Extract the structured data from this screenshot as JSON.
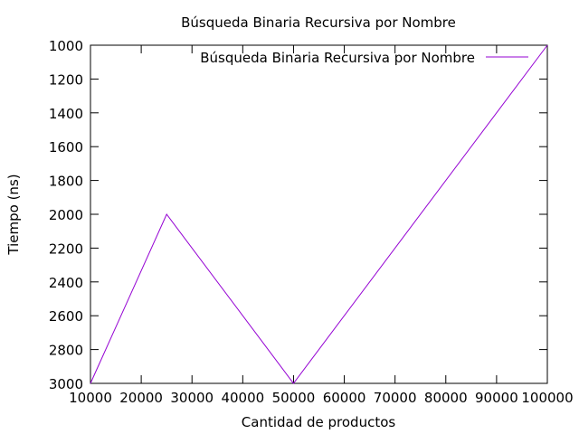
{
  "chart_data": {
    "type": "line",
    "title": "Búsqueda Binaria Recursiva por Nombre",
    "xlabel": "Cantidad de productos",
    "ylabel": "Tiempo (ns)",
    "xlim": [
      10000,
      100000
    ],
    "ylim": [
      1000,
      3000
    ],
    "y_inverted": true,
    "grid": false,
    "legend_position": "top-right",
    "x_ticks": [
      10000,
      20000,
      30000,
      40000,
      50000,
      60000,
      70000,
      80000,
      90000,
      100000
    ],
    "x_tick_labels": [
      "10000",
      "20000",
      "30000",
      "40000",
      "50000",
      "60000",
      "70000",
      "80000",
      "90000",
      "100000"
    ],
    "y_ticks": [
      1000,
      1200,
      1400,
      1600,
      1800,
      2000,
      2200,
      2400,
      2600,
      2800,
      3000
    ],
    "y_tick_labels": [
      "1000",
      "1200",
      "1400",
      "1600",
      "1800",
      "2000",
      "2200",
      "2400",
      "2600",
      "2800",
      "3000"
    ],
    "series": [
      {
        "name": "Búsqueda Binaria Recursiva por Nombre",
        "color": "#9400d3",
        "x": [
          10000,
          25000,
          50000,
          100000
        ],
        "y": [
          3000,
          2000,
          3000,
          1000
        ]
      }
    ]
  }
}
